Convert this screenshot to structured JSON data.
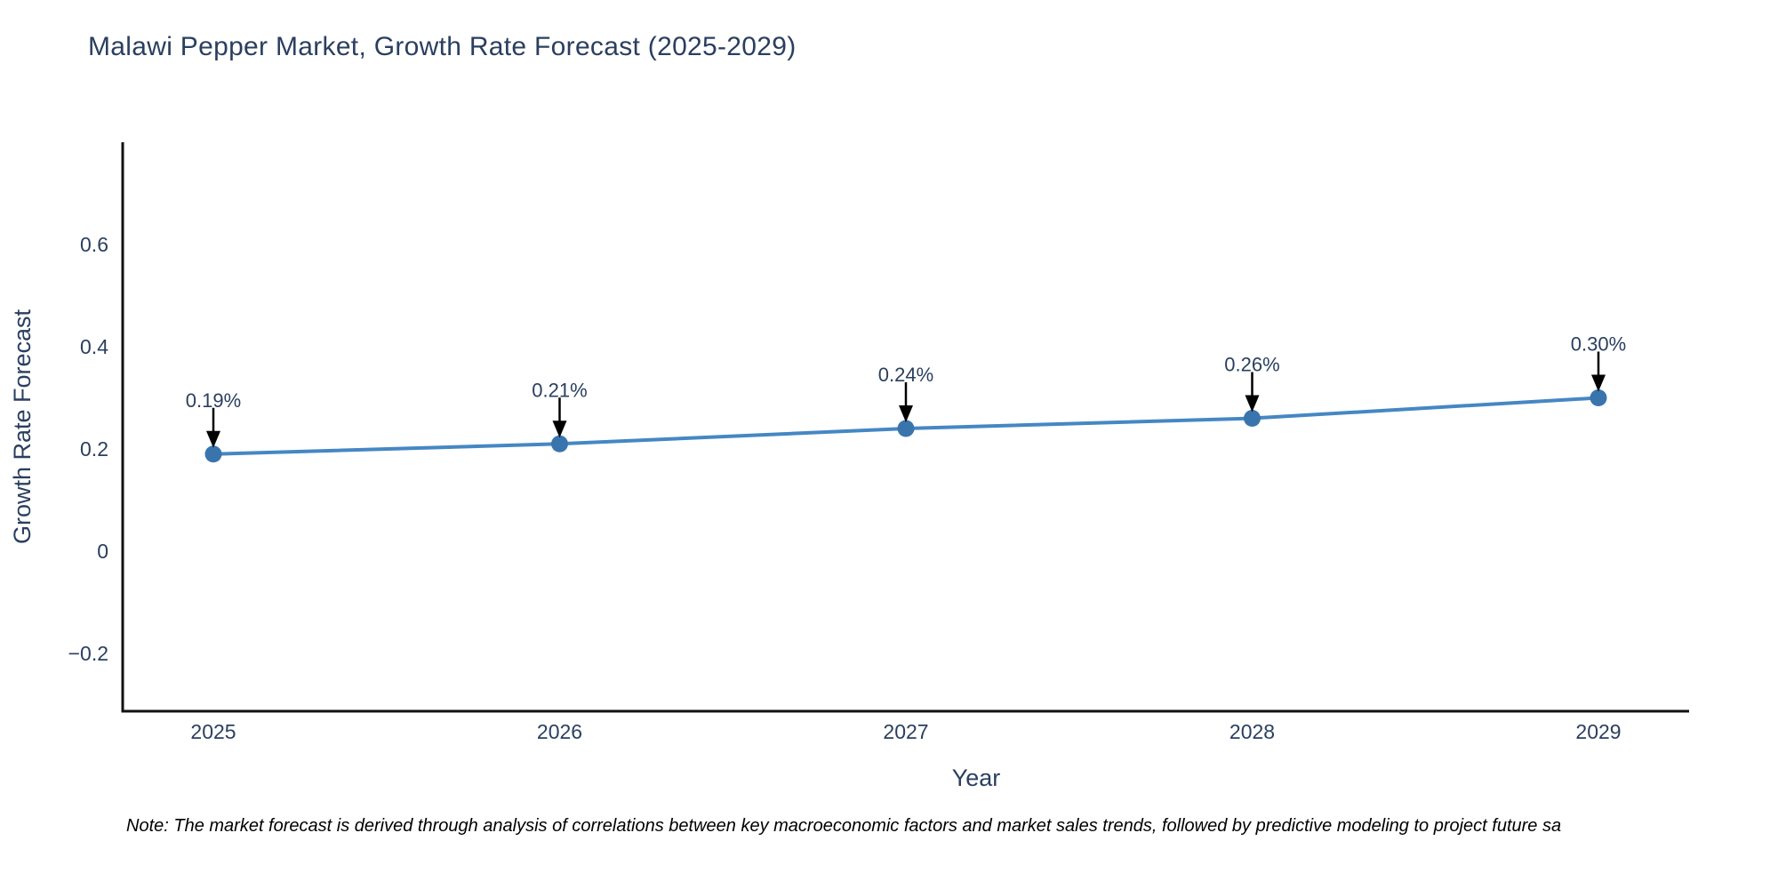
{
  "chart_data": {
    "type": "line",
    "title": "Malawi Pepper Market, Growth Rate Forecast (2025-2029)",
    "x": [
      2025,
      2026,
      2027,
      2028,
      2029
    ],
    "y": [
      0.19,
      0.21,
      0.24,
      0.26,
      0.3
    ],
    "point_labels": [
      "0.19%",
      "0.21%",
      "0.24%",
      "0.26%",
      "0.30%"
    ],
    "xlabel": "Year",
    "ylabel": "Growth Rate Forecast",
    "yticks": [
      -0.2,
      0,
      0.2,
      0.4,
      0.6
    ],
    "ylim": [
      -0.313,
      0.8
    ],
    "grid": false,
    "legend": "none",
    "colors": {
      "line": "#4587c3",
      "marker": "#3a74ad",
      "axis": "#111111",
      "text": "#2a3f5f",
      "annotation_arrow": "#000000",
      "background": "#ffffff"
    }
  },
  "note": {
    "text": "Note: The market forecast is derived through analysis of correlations between key macroeconomic factors and market sales trends, followed by predictive modeling to project future sa"
  }
}
